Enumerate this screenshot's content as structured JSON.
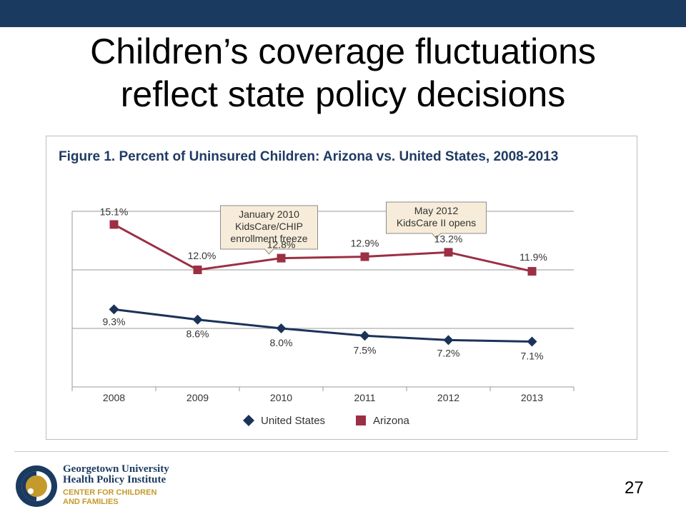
{
  "slide": {
    "title_line1": "Children’s coverage fluctuations",
    "title_line2": "reflect state policy decisions",
    "page_number": "27"
  },
  "logo": {
    "line1": "Georgetown University",
    "line2": "Health Policy Institute",
    "line3": "CENTER FOR CHILDREN",
    "line4": "AND FAMILIES",
    "colors": {
      "navy": "#1b3a5f",
      "gold": "#c49a2c"
    }
  },
  "chart_data": {
    "type": "line",
    "title": "Figure 1. Percent of Uninsured Children: Arizona vs. United States, 2008-2013",
    "categories": [
      "2008",
      "2009",
      "2010",
      "2011",
      "2012",
      "2013"
    ],
    "series": [
      {
        "name": "United States",
        "values": [
          9.3,
          8.6,
          8.0,
          7.5,
          7.2,
          7.1
        ],
        "labels": [
          "9.3%",
          "8.6%",
          "8.0%",
          "7.5%",
          "7.2%",
          "7.1%"
        ],
        "color": "#1b3358",
        "marker": "diamond"
      },
      {
        "name": "Arizona",
        "values": [
          15.1,
          12.0,
          12.8,
          12.9,
          13.2,
          11.9
        ],
        "labels": [
          "15.1%",
          "12.0%",
          "12.8%",
          "12.9%",
          "13.2%",
          "11.9%"
        ],
        "color": "#9b2f44",
        "marker": "square"
      }
    ],
    "annotations": [
      {
        "category": "2010",
        "lines": [
          "January 2010",
          "KidsCare/CHIP",
          "enrollment freeze"
        ]
      },
      {
        "category": "2012",
        "lines": [
          "May 2012",
          "KidsCare II opens"
        ]
      }
    ],
    "ylim": [
      4,
      16
    ],
    "gridlines": [
      8,
      12,
      16
    ],
    "grid": true,
    "legend_position": "bottom"
  }
}
